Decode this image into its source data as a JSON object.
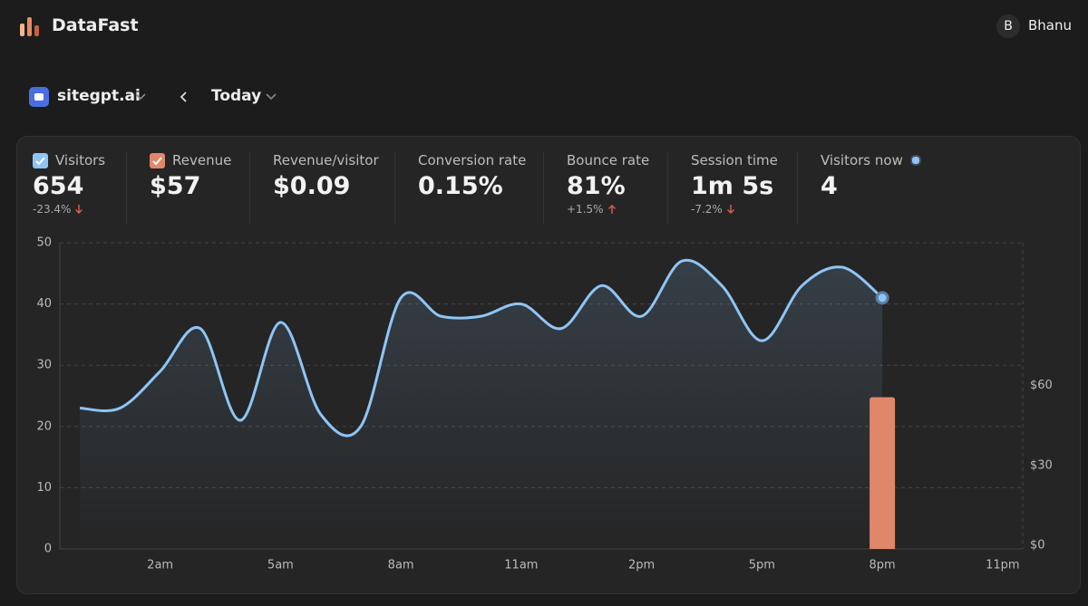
{
  "header": {
    "brand": "DataFast",
    "user_initial": "B",
    "user_name": "Bhanu",
    "site": "sitegpt.ai",
    "period": "Today"
  },
  "stats": [
    {
      "value": "654",
      "change": {
        "text": "-23.4%",
        "direction": "down"
      }
    },
    {
      "value": "$57"
    },
    {
      "label": "Revenue/visitor",
      "value": "$0.09"
    },
    {
      "label": "Conversion rate",
      "value": "0.15%"
    },
    {
      "label": "Bounce rate",
      "value": "81%",
      "change": {
        "text": "+1.5%",
        "direction": "up"
      }
    },
    {
      "label": "Session time",
      "value": "1m 5s",
      "change": {
        "text": "-7.2%",
        "direction": "down"
      }
    },
    {
      "label": "Visitors now",
      "value": "4",
      "live": true
    }
  ],
  "chart_data": {
    "type": "line",
    "categories": [
      null,
      null,
      "2am",
      null,
      null,
      "5am",
      null,
      null,
      "8am",
      null,
      null,
      "11am",
      null,
      null,
      "2pm",
      null,
      null,
      "5pm",
      null,
      null,
      "8pm",
      null,
      null,
      "11pm"
    ],
    "series": [
      {
        "name": "Visitors",
        "color": "#8ec5f7",
        "values": [
          23,
          23,
          29,
          36,
          21,
          37,
          22,
          20,
          41,
          38,
          38,
          40,
          36,
          43,
          38,
          47,
          43,
          34,
          43,
          46,
          41,
          null,
          null,
          null
        ]
      },
      {
        "name": "Revenue",
        "color": "#e0876a",
        "type": "bar",
        "axis": "y2",
        "values": [
          null,
          null,
          null,
          null,
          null,
          null,
          null,
          null,
          null,
          null,
          null,
          null,
          null,
          null,
          null,
          null,
          null,
          null,
          null,
          null,
          57,
          null,
          null,
          null
        ]
      }
    ],
    "ylim": [
      0,
      50
    ],
    "yticks": [
      0,
      10,
      20,
      30,
      40,
      50
    ],
    "y2lim": [
      0,
      115
    ],
    "y2ticks": [
      {
        "value": 0,
        "label": "$0"
      },
      {
        "value": 30,
        "label": "$30"
      },
      {
        "value": 60,
        "label": "$60"
      }
    ],
    "grid": true
  }
}
